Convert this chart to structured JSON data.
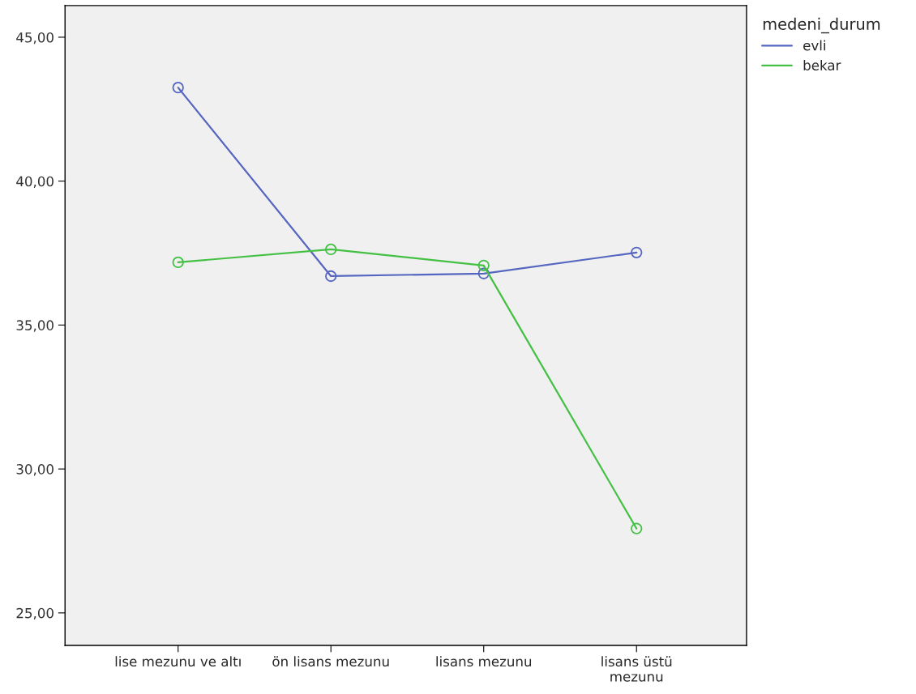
{
  "chart_data": {
    "type": "line",
    "categories": [
      "lise mezunu ve altı",
      "ön lisans mezunu",
      "lisans mezunu",
      "lisans üstü\nmezunu"
    ],
    "series": [
      {
        "name": "evli",
        "color": "#5566c0",
        "values": [
          43.25,
          36.7,
          36.79,
          37.52
        ]
      },
      {
        "name": "bekar",
        "color": "#44c044",
        "values": [
          37.18,
          37.63,
          37.07,
          27.93
        ]
      }
    ],
    "ylim": [
      23.87,
      46.1
    ],
    "yticks": [
      {
        "value": 25,
        "label": "25,00"
      },
      {
        "value": 30,
        "label": "30,00"
      },
      {
        "value": 35,
        "label": "35,00"
      },
      {
        "value": 40,
        "label": "40,00"
      },
      {
        "value": 45,
        "label": "45,00"
      }
    ],
    "legend_title": "medeni_durum",
    "legend": "top right",
    "marker": "circle",
    "line_style": "solid",
    "grid": false
  }
}
